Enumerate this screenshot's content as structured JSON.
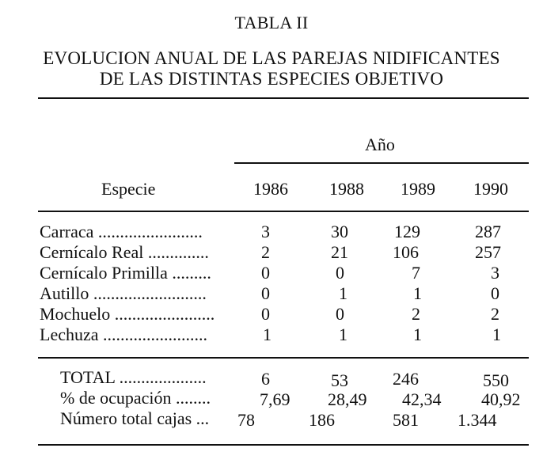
{
  "table": {
    "caption": "TABLA II",
    "title_lines": [
      "EVOLUCION ANUAL DE LAS PAREJAS NIDIFICANTES",
      "DE LAS DISTINTAS ESPECIES OBJETIVO"
    ],
    "group_header": "Año",
    "row_header": "Especie",
    "years": [
      "1986",
      "1988",
      "1989",
      "1990"
    ],
    "species_rows": [
      {
        "label": "Carraca ........................",
        "values": [
          "3",
          "30",
          "129",
          "287"
        ]
      },
      {
        "label": "Cernícalo Real ..............",
        "values": [
          "2",
          "21",
          "106",
          "257"
        ]
      },
      {
        "label": "Cernícalo Primilla .........",
        "values": [
          "0",
          "0",
          "7",
          "3"
        ]
      },
      {
        "label": "Autillo ..........................",
        "values": [
          "0",
          "1",
          "1",
          "0"
        ]
      },
      {
        "label": "Mochuelo .......................",
        "values": [
          "0",
          "0",
          "2",
          "2"
        ]
      },
      {
        "label": "Lechuza ........................",
        "values": [
          "1",
          "1",
          "1",
          "1"
        ]
      }
    ],
    "summary_rows": [
      {
        "label": "TOTAL ....................",
        "values": [
          "6",
          "53",
          "246",
          "550"
        ]
      },
      {
        "label": "% de ocupación ........",
        "values": [
          "7,69",
          "28,49",
          "42,34",
          "40,92"
        ]
      },
      {
        "label": "Número total cajas ...",
        "values": [
          "78",
          "186",
          "581",
          "1.344"
        ]
      }
    ]
  }
}
